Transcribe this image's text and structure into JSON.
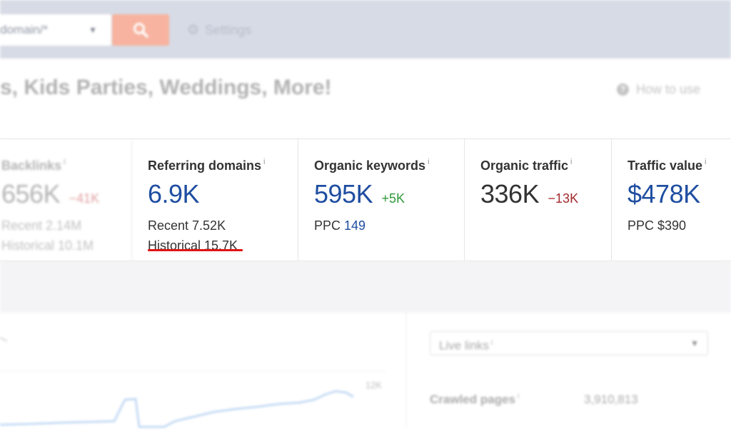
{
  "topbar": {
    "domain_mode": "domain/*",
    "settings_label": "Settings",
    "search_button_color": "#f7b39f"
  },
  "page": {
    "title": "s, Kids Parties, Weddings, More!",
    "how_to_use": "How to use"
  },
  "metrics": {
    "backlinks": {
      "label": "Backlinks",
      "info": "i",
      "value": "656K",
      "delta": "−41K",
      "recent": "Recent 2.14M",
      "historical": "Historical 10.1M"
    },
    "referring_domains": {
      "label": "Referring domains",
      "info": "i",
      "value": "6.9K",
      "recent": "Recent 7.52K",
      "historical": "Historical 15.7K"
    },
    "organic_keywords": {
      "label": "Organic keywords",
      "info": "i",
      "value": "595K",
      "delta": "+5K",
      "ppc_label": "PPC",
      "ppc_value": "149"
    },
    "organic_traffic": {
      "label": "Organic traffic",
      "info": "i",
      "value": "336K",
      "delta": "−13K"
    },
    "traffic_value": {
      "label": "Traffic value",
      "info": "i",
      "value": "$478K",
      "ppc": "PPC $390"
    }
  },
  "lower": {
    "live_links": "Live links",
    "live_links_info": "i",
    "chart_tick": "12K",
    "crawled_pages_label": "Crawled pages",
    "crawled_pages_info": "i",
    "crawled_pages_value": "3,910,813"
  },
  "colors": {
    "accent_blue": "#1f4ea1",
    "positive": "#2f9a3a",
    "negative": "#a2292c",
    "highlight_underline": "#e01414"
  }
}
